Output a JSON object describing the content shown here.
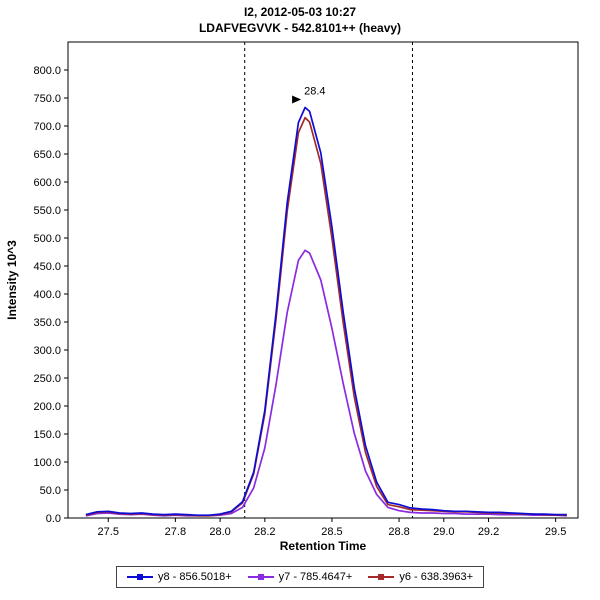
{
  "header": {
    "title_line1": "I2, 2012-05-03 10:27",
    "title_line2": "LDAFVEGVVK - 542.8101++ (heavy)"
  },
  "chart_data": {
    "type": "line",
    "title": "I2, 2012-05-03 10:27",
    "subtitle": "LDAFVEGVVK - 542.8101++ (heavy)",
    "xlabel": "Retention Time",
    "ylabel": "Intensity 10^3",
    "xlim": [
      27.32,
      29.6
    ],
    "ylim": [
      0,
      850
    ],
    "grid": false,
    "legend_position": "bottom",
    "x_ticks": [
      27.5,
      27.8,
      28.0,
      28.2,
      28.5,
      28.8,
      29.0,
      29.2,
      29.5
    ],
    "x_tick_labels": [
      "27.5",
      "27.8",
      "28.0",
      "28.2",
      "28.5",
      "28.8",
      "29.0",
      "29.2",
      "29.5"
    ],
    "y_ticks": [
      0,
      50,
      100,
      150,
      200,
      250,
      300,
      350,
      400,
      450,
      500,
      550,
      600,
      650,
      700,
      750,
      800
    ],
    "y_tick_labels": [
      "0.0",
      "50.0",
      "100.0",
      "150.0",
      "200.0",
      "250.0",
      "300.0",
      "350.0",
      "400.0",
      "450.0",
      "500.0",
      "550.0",
      "600.0",
      "650.0",
      "700.0",
      "750.0",
      "800.0"
    ],
    "integration_boundaries": [
      28.11,
      28.86
    ],
    "peak_annotation": {
      "text": "28.4",
      "x": 28.38,
      "y": 733
    },
    "x": [
      27.4,
      27.45,
      27.5,
      27.55,
      27.6,
      27.65,
      27.7,
      27.75,
      27.8,
      27.85,
      27.9,
      27.95,
      28.0,
      28.05,
      28.1,
      28.15,
      28.2,
      28.25,
      28.3,
      28.35,
      28.38,
      28.4,
      28.45,
      28.5,
      28.55,
      28.6,
      28.65,
      28.7,
      28.75,
      28.8,
      28.85,
      28.9,
      28.95,
      29.0,
      29.05,
      29.1,
      29.15,
      29.2,
      29.25,
      29.3,
      29.35,
      29.4,
      29.45,
      29.5,
      29.55
    ],
    "series": [
      {
        "name": "y8 - 856.5018+",
        "color": "#0d0dd6",
        "values": [
          6,
          11,
          12,
          9,
          8,
          9,
          7,
          6,
          7,
          6,
          5,
          5,
          7,
          12,
          29,
          82,
          192,
          365,
          563,
          706,
          733,
          726,
          652,
          520,
          369,
          232,
          129,
          64,
          28,
          24,
          18,
          16,
          15,
          13,
          12,
          12,
          11,
          10,
          10,
          9,
          8,
          7,
          7,
          6,
          6
        ]
      },
      {
        "name": "y7 - 785.4647+",
        "color": "#8a2be2",
        "values": [
          4,
          8,
          9,
          7,
          6,
          7,
          5,
          4,
          5,
          4,
          4,
          4,
          5,
          8,
          19,
          54,
          125,
          238,
          367,
          460,
          478,
          473,
          425,
          339,
          241,
          151,
          84,
          42,
          19,
          13,
          10,
          9,
          9,
          8,
          8,
          7,
          7,
          7,
          6,
          6,
          6,
          5,
          5,
          5,
          4
        ]
      },
      {
        "name": "y6 - 638.3963+",
        "color": "#a52a2a",
        "values": [
          5,
          10,
          11,
          8,
          7,
          8,
          6,
          5,
          6,
          5,
          4,
          4,
          6,
          11,
          27,
          79,
          186,
          355,
          548,
          688,
          715,
          707,
          633,
          500,
          350,
          216,
          117,
          56,
          24,
          20,
          15,
          14,
          13,
          12,
          11,
          11,
          10,
          9,
          9,
          8,
          7,
          7,
          6,
          5,
          5
        ]
      }
    ],
    "annotation_color": "#0000cc"
  }
}
